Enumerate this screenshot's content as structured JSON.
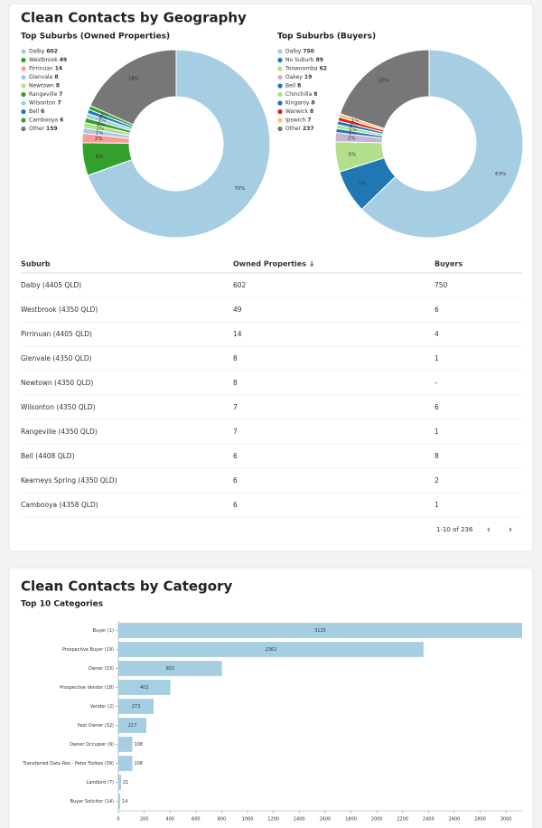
{
  "geography": {
    "title": "Clean Contacts by Geography",
    "table": {
      "columns": [
        "Suburb",
        "Owned Properties ↓",
        "Buyers"
      ],
      "rows": [
        [
          "Dalby (4405 QLD)",
          602,
          750
        ],
        [
          "Westbrook (4350 QLD)",
          49,
          6
        ],
        [
          "Pirrinuan (4405 QLD)",
          14,
          4
        ],
        [
          "Glenvale (4350 QLD)",
          8,
          1
        ],
        [
          "Newtown (4350 QLD)",
          8,
          "–"
        ],
        [
          "Wilsonton (4350 QLD)",
          7,
          6
        ],
        [
          "Rangeville (4350 QLD)",
          7,
          1
        ],
        [
          "Bell (4408 QLD)",
          6,
          8
        ],
        [
          "Kearneys Spring (4350 QLD)",
          6,
          2
        ],
        [
          "Cambooya (4358 QLD)",
          6,
          1
        ]
      ],
      "pagination": "1-10 of 236"
    }
  },
  "category": {
    "title": "Clean Contacts by Category"
  },
  "chart_data": [
    {
      "type": "pie",
      "title": "Top Suburbs (Owned Properties)",
      "legend": "left",
      "categories": [
        "Dalby",
        "Westbrook",
        "Pirrinuan",
        "Glenvale",
        "Newtown",
        "Rangeville",
        "Wilsonton",
        "Bell",
        "Cambooya",
        "Other"
      ],
      "values": [
        602,
        49,
        14,
        8,
        8,
        7,
        7,
        6,
        6,
        159
      ],
      "percent_labels": [
        "70%",
        "6%",
        "2%",
        "1%",
        "1%",
        "1%",
        "1%",
        "1%",
        "1%",
        "18%"
      ],
      "colors": [
        "#a6cee3",
        "#33a02c",
        "#fb9a99",
        "#a6c8e8",
        "#b2df8a",
        "#33a02c",
        "#a6cee3",
        "#1f78b4",
        "#33a02c",
        "#777777"
      ]
    },
    {
      "type": "pie",
      "title": "Top Suburbs (Buyers)",
      "legend": "left",
      "categories": [
        "Dalby",
        "No Suburb",
        "Toowoomba",
        "Oakey",
        "Bell",
        "Chinchilla",
        "Kingaroy",
        "Warwick",
        "Ipswich",
        "Other"
      ],
      "values": [
        750,
        89,
        62,
        19,
        8,
        8,
        8,
        8,
        7,
        237
      ],
      "percent_labels": [
        "63%",
        "7%",
        "5%",
        "2%",
        "1%",
        "1%",
        "1%",
        "1%",
        "1%",
        "20%"
      ],
      "colors": [
        "#a6cee3",
        "#1f78b4",
        "#b2df8a",
        "#cab2d6",
        "#1f78b4",
        "#b2df8a",
        "#1f78b4",
        "#e31a1c",
        "#fdbf6f",
        "#777777"
      ]
    },
    {
      "type": "hbar",
      "title": "Top 10 Categories",
      "color": "#a6cee3",
      "grid": false,
      "categories": [
        "Buyer (1)",
        "Prospective Buyer (19)",
        "Owner (33)",
        "Prospective Vendor (18)",
        "Vendor (2)",
        "Past Owner (32)",
        "Owner Occupier (9)",
        "Transferred Data Rex - Peter Forbes (39)",
        "Landlord (7)",
        "Buyer Solicitor (14)"
      ],
      "values": [
        3125,
        2362,
        802,
        402,
        273,
        217,
        108,
        108,
        21,
        14
      ],
      "xlim": [
        0,
        3125
      ],
      "xticks": [
        0,
        200,
        400,
        600,
        800,
        1000,
        1200,
        1400,
        1600,
        1800,
        2000,
        2200,
        2400,
        2600,
        2800,
        3000
      ]
    }
  ]
}
